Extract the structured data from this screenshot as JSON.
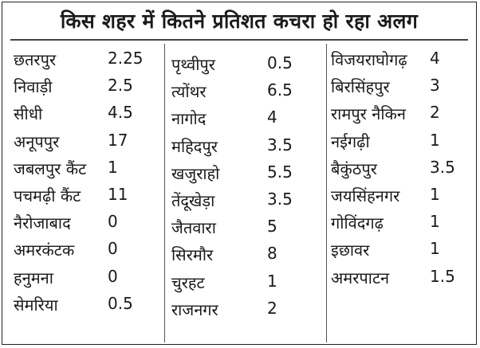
{
  "title": "किस शहर में कितने प्रतिशत कचरा हो रहा अलग",
  "chart_data": {
    "type": "table",
    "columns": [
      [
        {
          "city": "छतरपुर",
          "percent": "2.25"
        },
        {
          "city": "निवाड़ी",
          "percent": "2.5"
        },
        {
          "city": "सीधी",
          "percent": "4.5"
        },
        {
          "city": "अनूपपुर",
          "percent": "17"
        },
        {
          "city": "जबलपुर कैंट",
          "percent": "1"
        },
        {
          "city": "पचमढ़ी कैंट",
          "percent": "11"
        },
        {
          "city": "नैरोजाबाद",
          "percent": "0"
        },
        {
          "city": "अमरकंटक",
          "percent": "0"
        },
        {
          "city": "हनुमना",
          "percent": "0"
        },
        {
          "city": "सेमरिया",
          "percent": "0.5"
        }
      ],
      [
        {
          "city": "पृथ्वीपुर",
          "percent": "0.5"
        },
        {
          "city": "त्योंथर",
          "percent": "6.5"
        },
        {
          "city": "नागोद",
          "percent": "4"
        },
        {
          "city": "महिदपुर",
          "percent": "3.5"
        },
        {
          "city": "खजुराहो",
          "percent": "5.5"
        },
        {
          "city": "तेंदूखेड़ा",
          "percent": "3.5"
        },
        {
          "city": "जैतवारा",
          "percent": "5"
        },
        {
          "city": "सिरमौर",
          "percent": "8"
        },
        {
          "city": "चुरहट",
          "percent": "1"
        },
        {
          "city": "राजनगर",
          "percent": "2"
        }
      ],
      [
        {
          "city": "विजयराघोगढ़",
          "percent": "4"
        },
        {
          "city": "बिरसिंहपुर",
          "percent": "3"
        },
        {
          "city": "रामपुर नैकिन",
          "percent": "2"
        },
        {
          "city": "नईगढ़ी",
          "percent": "1"
        },
        {
          "city": "बैकुंठपुर",
          "percent": "3.5"
        },
        {
          "city": "जयसिंहनगर",
          "percent": "1"
        },
        {
          "city": "गोविंदगढ़",
          "percent": "1"
        },
        {
          "city": "इछावर",
          "percent": "1"
        },
        {
          "city": "अमरपाटन",
          "percent": "1.5"
        }
      ]
    ]
  }
}
